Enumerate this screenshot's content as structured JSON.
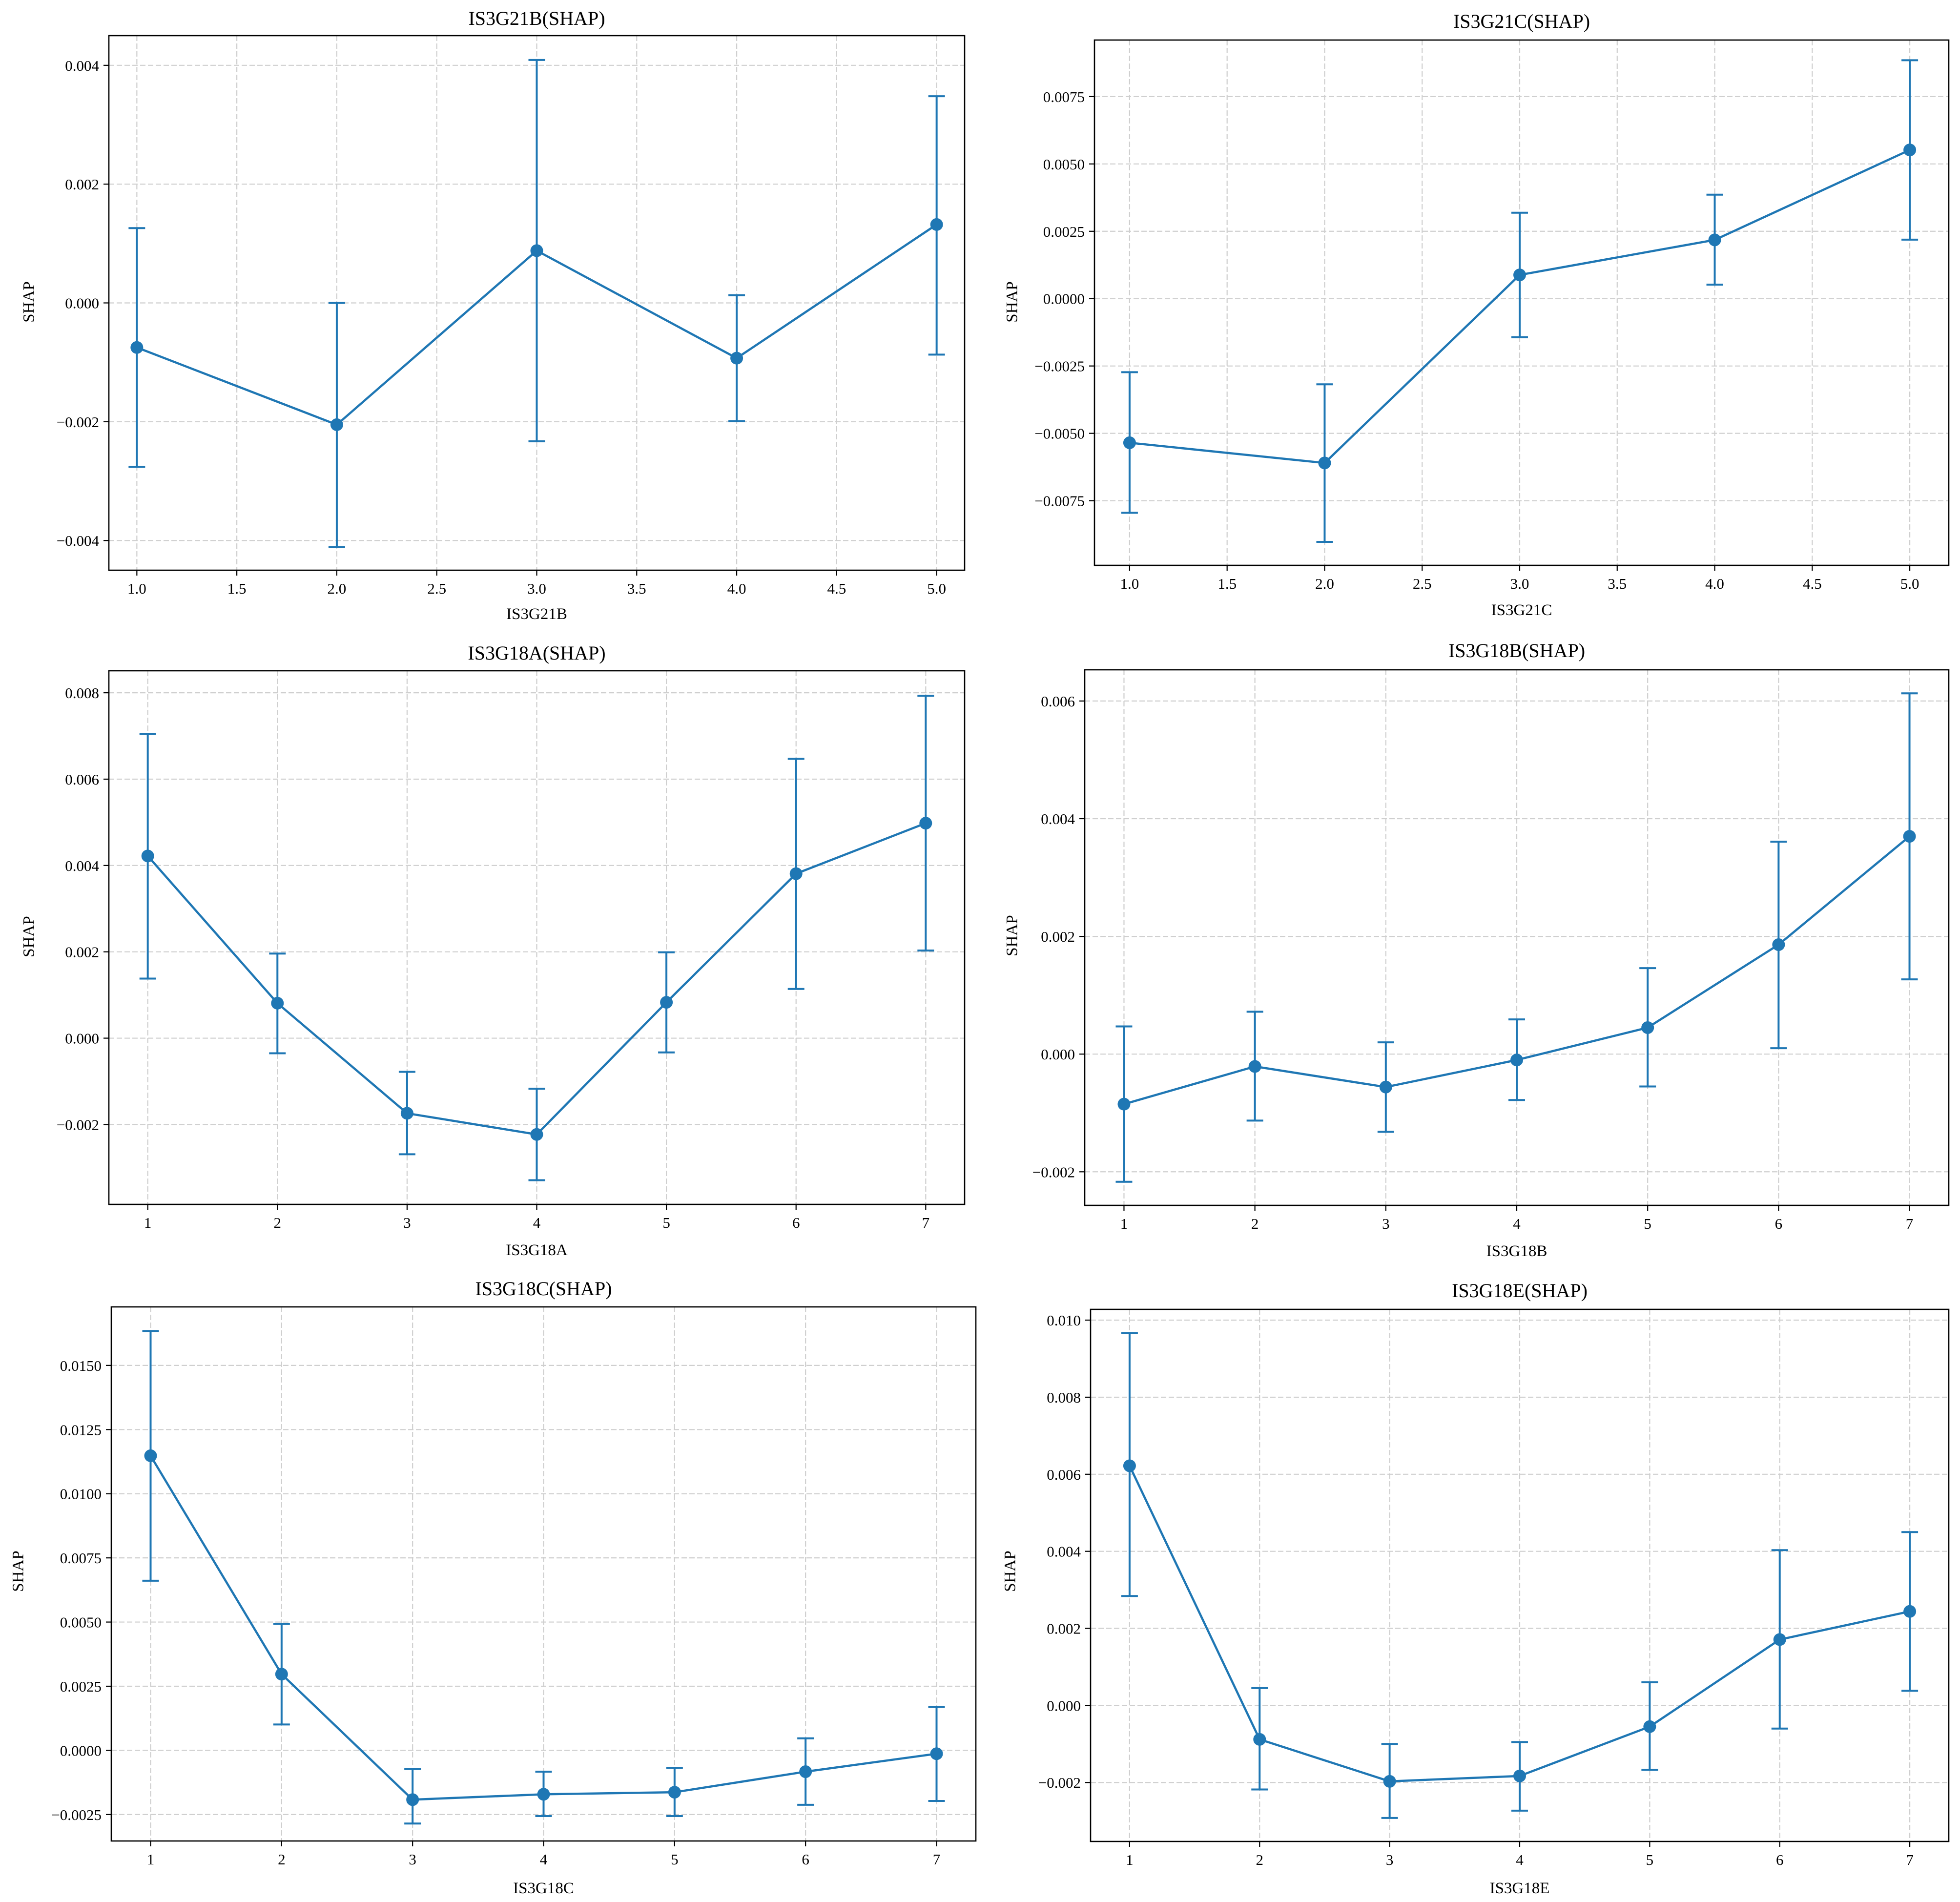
{
  "chart_data": [
    {
      "type": "line",
      "title": "IS3G21B(SHAP)",
      "xlabel": "IS3G21B",
      "ylabel": "SHAP",
      "x": [
        1,
        2,
        3,
        4,
        5
      ],
      "y": [
        -0.00075,
        -0.00205,
        0.00088,
        -0.00093,
        0.00132
      ],
      "err_low": [
        -0.00276,
        -0.00411,
        -0.00233,
        -0.00199,
        -0.00087
      ],
      "err_high": [
        0.00126,
        0.0,
        0.00409,
        0.00013,
        0.00348
      ],
      "xlim": [
        0.86,
        5.14
      ],
      "ylim": [
        -0.0045,
        0.0045
      ],
      "xticks": [
        1.0,
        1.5,
        2.0,
        2.5,
        3.0,
        3.5,
        4.0,
        4.5,
        5.0
      ],
      "xtick_labels": [
        "1.0",
        "1.5",
        "2.0",
        "2.5",
        "3.0",
        "3.5",
        "4.0",
        "4.5",
        "5.0"
      ],
      "yticks": [
        -0.004,
        -0.002,
        0.0,
        0.002,
        0.004
      ],
      "ytick_labels": [
        "−0.004",
        "−0.002",
        "0.000",
        "0.002",
        "0.004"
      ],
      "grid": true,
      "color": "#1f77b4"
    },
    {
      "type": "line",
      "title": "IS3G21C(SHAP)",
      "xlabel": "IS3G21C",
      "ylabel": "SHAP",
      "x": [
        1,
        2,
        3,
        4,
        5
      ],
      "y": [
        -0.00535,
        -0.0061,
        0.00088,
        0.00218,
        0.00552
      ],
      "err_low": [
        -0.00795,
        -0.00903,
        -0.00143,
        0.00052,
        0.00219
      ],
      "err_high": [
        -0.00273,
        -0.00318,
        0.00319,
        0.00386,
        0.00885
      ],
      "xlim": [
        0.82,
        5.2
      ],
      "ylim": [
        -0.0099,
        0.0096
      ],
      "xticks": [
        1.0,
        1.5,
        2.0,
        2.5,
        3.0,
        3.5,
        4.0,
        4.5,
        5.0
      ],
      "xtick_labels": [
        "1.0",
        "1.5",
        "2.0",
        "2.5",
        "3.0",
        "3.5",
        "4.0",
        "4.5",
        "5.0"
      ],
      "yticks": [
        -0.0075,
        -0.005,
        -0.0025,
        0.0,
        0.0025,
        0.005,
        0.0075
      ],
      "ytick_labels": [
        "−0.0075",
        "−0.0050",
        "−0.0025",
        "0.0000",
        "0.0025",
        "0.0050",
        "0.0075"
      ],
      "grid": true,
      "color": "#1f77b4"
    },
    {
      "type": "line",
      "title": "IS3G18A(SHAP)",
      "xlabel": "IS3G18A",
      "ylabel": "SHAP",
      "x": [
        1,
        2,
        3,
        4,
        5,
        6,
        7
      ],
      "y": [
        0.00422,
        0.00081,
        -0.00174,
        -0.00223,
        0.00083,
        0.00381,
        0.00498
      ],
      "err_low": [
        0.00138,
        -0.00035,
        -0.00269,
        -0.00329,
        -0.00033,
        0.00114,
        0.00203
      ],
      "err_high": [
        0.00705,
        0.00196,
        -0.00078,
        -0.00117,
        0.00199,
        0.00647,
        0.00793
      ],
      "xlim": [
        0.7,
        7.3
      ],
      "ylim": [
        -0.00385,
        0.00851
      ],
      "xticks": [
        1,
        2,
        3,
        4,
        5,
        6,
        7
      ],
      "xtick_labels": [
        "1",
        "2",
        "3",
        "4",
        "5",
        "6",
        "7"
      ],
      "yticks": [
        -0.002,
        0.0,
        0.002,
        0.004,
        0.006,
        0.008
      ],
      "ytick_labels": [
        "−0.002",
        "0.000",
        "0.002",
        "0.004",
        "0.006",
        "0.008"
      ],
      "grid": true,
      "color": "#1f77b4"
    },
    {
      "type": "line",
      "title": "IS3G18B(SHAP)",
      "xlabel": "IS3G18B",
      "ylabel": "SHAP",
      "x": [
        1,
        2,
        3,
        4,
        5,
        6,
        7
      ],
      "y": [
        -0.00085,
        -0.00021,
        -0.00056,
        -0.0001,
        0.00045,
        0.00186,
        0.0037
      ],
      "err_low": [
        -0.00217,
        -0.00113,
        -0.00132,
        -0.00078,
        -0.00055,
        0.0001,
        0.00127
      ],
      "err_high": [
        0.00047,
        0.00072,
        0.0002,
        0.00059,
        0.00146,
        0.00361,
        0.00613
      ],
      "xlim": [
        0.7,
        7.3
      ],
      "ylim": [
        -0.00257,
        0.00653
      ],
      "xticks": [
        1,
        2,
        3,
        4,
        5,
        6,
        7
      ],
      "xtick_labels": [
        "1",
        "2",
        "3",
        "4",
        "5",
        "6",
        "7"
      ],
      "yticks": [
        -0.002,
        0.0,
        0.002,
        0.004,
        0.006
      ],
      "ytick_labels": [
        "−0.002",
        "0.000",
        "0.002",
        "0.004",
        "0.006"
      ],
      "grid": true,
      "color": "#1f77b4"
    },
    {
      "type": "line",
      "title": "IS3G18C(SHAP)",
      "xlabel": "IS3G18C",
      "ylabel": "SHAP",
      "x": [
        1,
        2,
        3,
        4,
        5,
        6,
        7
      ],
      "y": [
        0.01148,
        0.00297,
        -0.00192,
        -0.00171,
        -0.00163,
        -0.00083,
        -0.00013
      ],
      "err_low": [
        0.00661,
        0.00101,
        -0.00285,
        -0.00256,
        -0.00256,
        -0.00212,
        -0.00197
      ],
      "err_high": [
        0.01634,
        0.00493,
        -0.00073,
        -0.00083,
        -0.00068,
        0.00047,
        0.00169
      ],
      "xlim": [
        0.7,
        7.3
      ],
      "ylim": [
        -0.00353,
        0.01728
      ],
      "xticks": [
        1,
        2,
        3,
        4,
        5,
        6,
        7
      ],
      "xtick_labels": [
        "1",
        "2",
        "3",
        "4",
        "5",
        "6",
        "7"
      ],
      "yticks": [
        -0.0025,
        0.0,
        0.0025,
        0.005,
        0.0075,
        0.01,
        0.0125,
        0.015
      ],
      "ytick_labels": [
        "−0.0025",
        "0.0000",
        "0.0025",
        "0.0050",
        "0.0075",
        "0.0100",
        "0.0125",
        "0.0150"
      ],
      "grid": true,
      "color": "#1f77b4"
    },
    {
      "type": "line",
      "title": "IS3G18E(SHAP)",
      "xlabel": "IS3G18E",
      "ylabel": "SHAP",
      "x": [
        1,
        2,
        3,
        4,
        5,
        6,
        7
      ],
      "y": [
        0.00622,
        -0.00088,
        -0.00197,
        -0.00183,
        -0.00055,
        0.00171,
        0.00244
      ],
      "err_low": [
        0.00284,
        -0.00218,
        -0.00292,
        -0.00273,
        -0.00167,
        -0.0006,
        0.00038
      ],
      "err_high": [
        0.00966,
        0.00045,
        -0.001,
        -0.00095,
        0.0006,
        0.00403,
        0.0045
      ],
      "xlim": [
        0.7,
        7.3
      ],
      "ylim": [
        -0.00353,
        0.01028
      ],
      "xticks": [
        1,
        2,
        3,
        4,
        5,
        6,
        7
      ],
      "xtick_labels": [
        "1",
        "2",
        "3",
        "4",
        "5",
        "6",
        "7"
      ],
      "yticks": [
        -0.002,
        0.0,
        0.002,
        0.004,
        0.006,
        0.008,
        0.01
      ],
      "ytick_labels": [
        "−0.002",
        "0.000",
        "0.002",
        "0.004",
        "0.006",
        "0.008",
        "0.010"
      ],
      "grid": true,
      "color": "#1f77b4"
    }
  ]
}
